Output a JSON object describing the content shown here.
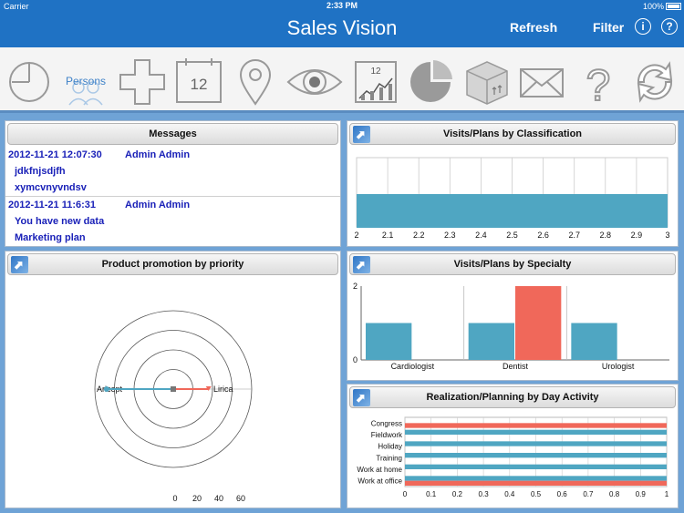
{
  "status": {
    "carrier": "Carrier",
    "time": "2:33 PM",
    "battery": "100%"
  },
  "navbar": {
    "title": "Sales Vision",
    "refresh": "Refresh",
    "filter": "Filter",
    "info": "i",
    "help": "?"
  },
  "toolbar": {
    "persons_label": "Persons",
    "calendar_day": "12",
    "report_day": "12",
    "items": [
      "pie-segment-icon",
      "persons-icon",
      "plus-icon",
      "calendar-icon",
      "location-pin-icon",
      "eye-icon",
      "calendar-chart-icon",
      "pie-chart-icon",
      "box-icon",
      "envelope-icon",
      "question-icon",
      "sync-icon"
    ]
  },
  "messages": {
    "title": "Messages",
    "items": [
      {
        "date": "2012-11-21 12:07:30",
        "author": "Admin Admin",
        "lines": [
          "jdkfnjsdjfh",
          "xymcvnyvndsv"
        ]
      },
      {
        "date": "2012-11-21 11:6:31",
        "author": "Admin Admin",
        "lines": [
          "You have new data",
          "Marketing plan"
        ]
      }
    ]
  },
  "promotion": {
    "title": "Product promotion by priority",
    "chart_data": {
      "type": "radar",
      "axes": [
        "Aricept",
        "Lirica"
      ],
      "ticks": [
        "0",
        "20",
        "40",
        "60"
      ],
      "series": [
        {
          "color": "#4fa6c2",
          "values": [
            68,
            0
          ]
        },
        {
          "color": "#f0685a",
          "values": [
            0,
            36
          ]
        }
      ]
    }
  },
  "classification": {
    "title": "Visits/Plans by Classification",
    "chart_data": {
      "type": "bar",
      "orientation": "horizontal",
      "xlim": [
        2,
        3
      ],
      "ticks": [
        "2",
        "2.1",
        "2.2",
        "2.3",
        "2.4",
        "2.5",
        "2.6",
        "2.7",
        "2.8",
        "2.9",
        "3"
      ],
      "values": [
        3
      ],
      "color": "#4fa6c2"
    }
  },
  "specialty": {
    "title": "Visits/Plans by Specialty",
    "chart_data": {
      "type": "bar",
      "categories": [
        "Cardiologist",
        "Dentist",
        "Urologist"
      ],
      "series": [
        {
          "color": "#4fa6c2",
          "values": [
            1,
            1,
            1
          ]
        },
        {
          "color": "#f0685a",
          "values": [
            0,
            2,
            0
          ]
        }
      ],
      "ylim": [
        0,
        2
      ],
      "yticks": [
        "0",
        "2"
      ]
    }
  },
  "activity": {
    "title": "Realization/Planning by Day Activity",
    "chart_data": {
      "type": "bar",
      "orientation": "horizontal",
      "categories": [
        "Congress",
        "Fieldwork",
        "Holiday",
        "Training",
        "Work at home",
        "Work at office"
      ],
      "series": [
        {
          "color": "#4fa6c2",
          "values": [
            0,
            1,
            1,
            1,
            1,
            1
          ]
        },
        {
          "color": "#f0685a",
          "values": [
            1,
            0,
            0,
            0,
            0,
            1
          ]
        }
      ],
      "xlim": [
        0,
        1
      ],
      "ticks": [
        "0",
        "0.1",
        "0.2",
        "0.3",
        "0.4",
        "0.5",
        "0.6",
        "0.7",
        "0.8",
        "0.9",
        "1"
      ]
    }
  }
}
